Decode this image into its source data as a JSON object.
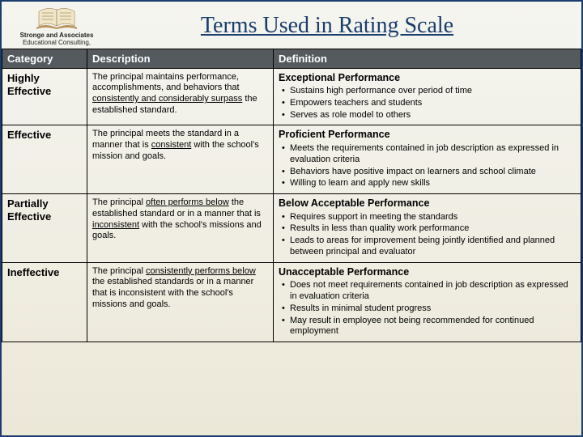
{
  "org_line1": "Stronge and Associates",
  "org_line2": "Educational Consulting,",
  "title": "Terms Used in Rating Scale",
  "headers": {
    "category": "Category",
    "description": "Description",
    "definition": "Definition"
  },
  "rows": [
    {
      "category": "Highly Effective",
      "desc_pre": "The principal maintains performance, accomplishments, and behaviors that ",
      "desc_u": "consistently and considerably surpass",
      "desc_post": " the established standard.",
      "def_head": "Exceptional Performance",
      "bullets": [
        "Sustains high performance over period of time",
        "Empowers teachers and students",
        "Serves as role model to others"
      ]
    },
    {
      "category": "Effective",
      "desc_pre": "The principal meets the standard in a manner that is ",
      "desc_u": "consistent",
      "desc_post": " with the school's mission and goals.",
      "def_head": "Proficient Performance",
      "bullets": [
        "Meets the requirements contained in job description as expressed in evaluation criteria",
        "Behaviors have positive impact on learners and school climate",
        "Willing to learn and apply new skills"
      ]
    },
    {
      "category": "Partially Effective",
      "desc_pre": "The principal ",
      "desc_u": "often performs below",
      "desc_post": " the established standard or in a manner that is ",
      "desc_u2": "inconsistent",
      "desc_post2": " with the school's missions and goals.",
      "def_head": "Below Acceptable Performance",
      "bullets": [
        "Requires support in meeting the standards",
        "Results in less than quality work performance",
        "Leads to areas for improvement being jointly identified and planned between principal and evaluator"
      ]
    },
    {
      "category": "Ineffective",
      "desc_pre": "The principal ",
      "desc_u": "consistently performs below",
      "desc_post": " the established standards or in a manner that is inconsistent with the school's missions and goals.",
      "def_head": "Unacceptable Performance",
      "bullets": [
        "Does not meet requirements contained in job description as expressed in evaluation criteria",
        "Results in minimal student progress",
        "May result in employee not being recommended for continued employment"
      ]
    }
  ],
  "colors": {
    "border": "#1a3d6d",
    "header_bg": "#555a5e",
    "title": "#1a3d6d",
    "page_bg_top": "#f5f5f0",
    "page_bg_bottom": "#ece8d8"
  }
}
